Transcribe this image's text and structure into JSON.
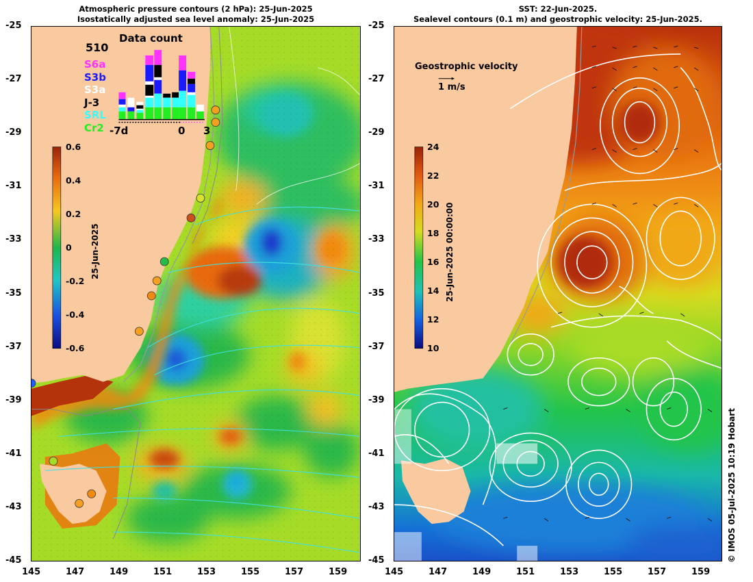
{
  "left_panel": {
    "title_line1": "Atmospheric pressure contours (2 hPa): 25-Jun-2025",
    "title_line2": "Isostatically adjusted sea level anomaly: 25-Jun-2025",
    "colorbar": {
      "ticks": [
        "0.6",
        "0.4",
        "0.2",
        "0",
        "-0.2",
        "-0.4",
        "-0.6"
      ],
      "date_label": "25-Jun-2025"
    },
    "data_count": {
      "title": "Data count",
      "total": "510",
      "missions": [
        {
          "label": "S6a",
          "color": "#ff33ff"
        },
        {
          "label": "S3b",
          "color": "#1a1aff"
        },
        {
          "label": "S3a",
          "color": "#ffffff"
        },
        {
          "label": "J-3",
          "color": "#000000"
        },
        {
          "label": "SRL",
          "color": "#33ffff"
        },
        {
          "label": "Cr2",
          "color": "#22ee22"
        }
      ],
      "axis_labels": [
        "-7d",
        "0",
        "3"
      ]
    }
  },
  "right_panel": {
    "title_line1": "SST: 22-Jun-2025.",
    "title_line2": "Sealevel contours (0.1 m) and geostrophic velocity: 25-Jun-2025.",
    "legend_title": "Geostrophic velocity",
    "legend_scale": "1 m/s",
    "colorbar": {
      "ticks": [
        "24",
        "22",
        "20",
        "18",
        "16",
        "14",
        "12",
        "10"
      ],
      "date_label": "25-Jun-2025 00:00:00"
    }
  },
  "axes": {
    "y_ticks": [
      "-25",
      "-27",
      "-29",
      "-31",
      "-33",
      "-35",
      "-37",
      "-39",
      "-41",
      "-43",
      "-45"
    ],
    "x_ticks": [
      "145",
      "147",
      "149",
      "151",
      "153",
      "155",
      "157",
      "159"
    ]
  },
  "credit": "© IMOS 05-Jul-2025 10:19 Hobart",
  "colors": {
    "land": "#f9c9a0",
    "anomaly_high": "#b43a0a",
    "anomaly_low": "#1a2fd0",
    "sst_warm": "#b52c0c",
    "sst_cool": "#1670d6"
  }
}
